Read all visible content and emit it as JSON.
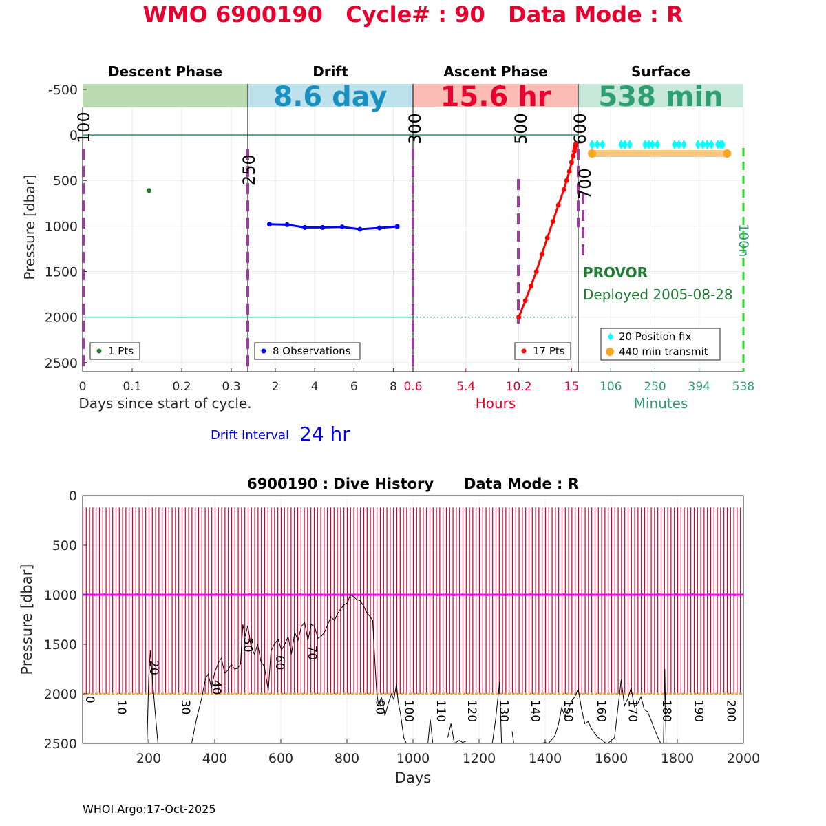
{
  "title": "WMO 6900190   Cycle# : 90   Data Mode : R",
  "footer": "WHOI Argo:17-Oct-2025",
  "colors": {
    "title": "#e8002f",
    "descent_band": "#bbdbb0",
    "drift_band": "#bde2ec",
    "ascent_band": "#fcbcb6",
    "surface_band": "#c6e8d8",
    "drift_big": "#1a8fc0",
    "ascent_big": "#e8002f",
    "surface_big": "#2f9e72",
    "descent_pts": "#1e7d32",
    "drift_pts": "#0000ff",
    "ascent_pts": "#ff0000",
    "position_fix": "#00ffff",
    "transmit": "#f5a623",
    "phase_marker": "#9b3d9b",
    "ref_line": "#2e9b7d",
    "end_marker": "#22dd22",
    "history_bars": "#cc0033",
    "history_drift": "#ff00ff",
    "history_park": "#f5a623"
  },
  "chart_data": [
    {
      "name": "cycle_profile",
      "type": "scatter",
      "ylabel": "Pressure [dbar]",
      "ylim": [
        2600,
        -560
      ],
      "yticks": [
        -500,
        0,
        500,
        1000,
        1500,
        2000,
        2500
      ],
      "reference_depths": [
        0,
        2000
      ],
      "panels": [
        {
          "key": "descent",
          "header": "Descent Phase",
          "band_value": "",
          "xlabel": "Days since start of cycle.",
          "xlim": [
            0,
            0.3333
          ],
          "xticks": [
            0,
            0.1,
            0.2,
            0.3
          ],
          "legend": "1 Pts",
          "points": [
            {
              "x": 0.134,
              "y": 610
            }
          ],
          "markers": [
            {
              "label": "100"
            },
            {
              "label": "250"
            }
          ]
        },
        {
          "key": "drift",
          "header": "Drift",
          "band_value": "8.6 day",
          "xlabel": "",
          "xlim": [
            0.6,
            9.0
          ],
          "xticks": [
            2,
            4,
            6,
            8
          ],
          "legend": "8 Observations",
          "points": [
            {
              "x": 1.7,
              "y": 980
            },
            {
              "x": 2.6,
              "y": 985
            },
            {
              "x": 3.5,
              "y": 1015
            },
            {
              "x": 4.4,
              "y": 1015
            },
            {
              "x": 5.4,
              "y": 1010
            },
            {
              "x": 6.3,
              "y": 1035
            },
            {
              "x": 7.3,
              "y": 1020
            },
            {
              "x": 8.2,
              "y": 1005
            }
          ],
          "markers": [
            {
              "label": "300"
            }
          ]
        },
        {
          "key": "ascent",
          "header": "Ascent Phase",
          "band_value": "15.6 hr",
          "xlabel": "Hours",
          "xlim": [
            0.6,
            15.6
          ],
          "xticks": [
            0.6,
            5.4,
            10.2,
            15
          ],
          "legend": "17 Pts",
          "points": [
            {
              "x": 10.2,
              "y": 2000
            },
            {
              "x": 10.8,
              "y": 1820
            },
            {
              "x": 11.3,
              "y": 1660
            },
            {
              "x": 11.8,
              "y": 1500
            },
            {
              "x": 12.3,
              "y": 1310
            },
            {
              "x": 12.8,
              "y": 1130
            },
            {
              "x": 13.3,
              "y": 950
            },
            {
              "x": 13.8,
              "y": 770
            },
            {
              "x": 14.3,
              "y": 600
            },
            {
              "x": 14.55,
              "y": 500
            },
            {
              "x": 14.8,
              "y": 400
            },
            {
              "x": 15.0,
              "y": 300
            },
            {
              "x": 15.15,
              "y": 230
            },
            {
              "x": 15.25,
              "y": 180
            },
            {
              "x": 15.3,
              "y": 150
            },
            {
              "x": 15.35,
              "y": 120
            },
            {
              "x": 15.38,
              "y": 100
            }
          ],
          "markers": [
            {
              "label": "500"
            },
            {
              "label": "600"
            }
          ]
        },
        {
          "key": "surface",
          "header": "Surface",
          "band_value": "538 min",
          "xlabel": "Minutes",
          "xlim": [
            0,
            538
          ],
          "xticks": [
            106,
            250,
            394,
            538
          ],
          "legend": [
            "20 Position fix",
            "440 min transmit"
          ],
          "position_fix_minutes": [
            45,
            62,
            79,
            140,
            152,
            168,
            218,
            230,
            242,
            258,
            314,
            328,
            344,
            390,
            406,
            420,
            434,
            455,
            464,
            470
          ],
          "transmit_minutes": [
            45,
            485
          ],
          "markers": [
            {
              "label": "700"
            },
            {
              "label": "100n"
            }
          ],
          "float_type": "PROVOR",
          "deployed": "Deployed 2005-08-28"
        }
      ],
      "drift_interval_label": "Drift Interval",
      "drift_interval_value": "24 hr"
    },
    {
      "name": "dive_history",
      "type": "bar",
      "title": "6900190 : Dive History      Data Mode : R",
      "xlabel": "Days",
      "ylabel": "Pressure [dbar]",
      "xlim": [
        0,
        2000
      ],
      "ylim": [
        0,
        2500
      ],
      "xticks": [
        200,
        400,
        600,
        800,
        1000,
        1200,
        1400,
        1600,
        1800,
        2000
      ],
      "yticks": [
        0,
        500,
        1000,
        1500,
        2000,
        2500
      ],
      "cycle_interval_days": 10,
      "cycle_count": 200,
      "profile_top_dbar": 120,
      "profile_bottom_dbar": 2000,
      "drift_pressure_dbar": 1000,
      "park_pressure_dbar": 2000,
      "cycle_labels": [
        {
          "cycle": "0",
          "day": 2,
          "depth": 2020
        },
        {
          "cycle": "10",
          "day": 98,
          "depth": 2060
        },
        {
          "cycle": "20",
          "day": 196,
          "depth": 1660
        },
        {
          "cycle": "30",
          "day": 292,
          "depth": 2060
        },
        {
          "cycle": "40",
          "day": 385,
          "depth": 1860
        },
        {
          "cycle": "50",
          "day": 480,
          "depth": 1430
        },
        {
          "cycle": "60",
          "day": 577,
          "depth": 1610
        },
        {
          "cycle": "70",
          "day": 675,
          "depth": 1510
        },
        {
          "cycle": "90",
          "day": 880,
          "depth": 2060
        },
        {
          "cycle": "100",
          "day": 968,
          "depth": 2060
        },
        {
          "cycle": "110",
          "day": 1065,
          "depth": 2060
        },
        {
          "cycle": "120",
          "day": 1158,
          "depth": 2060
        },
        {
          "cycle": "130",
          "day": 1255,
          "depth": 2060
        },
        {
          "cycle": "140",
          "day": 1350,
          "depth": 2060
        },
        {
          "cycle": "150",
          "day": 1450,
          "depth": 2060
        },
        {
          "cycle": "160",
          "day": 1550,
          "depth": 2060
        },
        {
          "cycle": "170",
          "day": 1645,
          "depth": 2060
        },
        {
          "cycle": "180",
          "day": 1748,
          "depth": 2060
        },
        {
          "cycle": "190",
          "day": 1845,
          "depth": 2060
        },
        {
          "cycle": "200",
          "day": 1943,
          "depth": 2060
        }
      ],
      "bottom_trace": [
        [
          195,
          2500
        ],
        [
          200,
          1850
        ],
        [
          205,
          1560
        ],
        [
          210,
          1800
        ],
        [
          220,
          2200
        ],
        [
          228,
          2500
        ],
        [
          330,
          2500
        ],
        [
          345,
          2250
        ],
        [
          360,
          2050
        ],
        [
          372,
          1850
        ],
        [
          380,
          1800
        ],
        [
          390,
          1940
        ],
        [
          400,
          1780
        ],
        [
          412,
          1680
        ],
        [
          420,
          1640
        ],
        [
          430,
          1790
        ],
        [
          440,
          1760
        ],
        [
          450,
          1700
        ],
        [
          460,
          1750
        ],
        [
          470,
          1740
        ],
        [
          478,
          1700
        ],
        [
          485,
          1300
        ],
        [
          492,
          1420
        ],
        [
          500,
          1310
        ],
        [
          510,
          1530
        ],
        [
          520,
          1600
        ],
        [
          530,
          1500
        ],
        [
          540,
          1680
        ],
        [
          550,
          1720
        ],
        [
          562,
          1970
        ],
        [
          570,
          1570
        ],
        [
          580,
          1500
        ],
        [
          592,
          1450
        ],
        [
          602,
          1560
        ],
        [
          612,
          1500
        ],
        [
          622,
          1420
        ],
        [
          632,
          1600
        ],
        [
          642,
          1380
        ],
        [
          652,
          1460
        ],
        [
          662,
          1320
        ],
        [
          672,
          1280
        ],
        [
          682,
          1460
        ],
        [
          692,
          1300
        ],
        [
          702,
          1320
        ],
        [
          712,
          1440
        ],
        [
          722,
          1420
        ],
        [
          732,
          1380
        ],
        [
          742,
          1300
        ],
        [
          752,
          1220
        ],
        [
          762,
          1260
        ],
        [
          772,
          1190
        ],
        [
          782,
          1140
        ],
        [
          792,
          1100
        ],
        [
          802,
          1080
        ],
        [
          810,
          1000
        ],
        [
          820,
          1020
        ],
        [
          830,
          1050
        ],
        [
          840,
          1060
        ],
        [
          850,
          1110
        ],
        [
          860,
          1180
        ],
        [
          870,
          1220
        ],
        [
          878,
          1260
        ],
        [
          885,
          1700
        ],
        [
          890,
          1980
        ],
        [
          895,
          2100
        ],
        [
          905,
          2040
        ],
        [
          915,
          2220
        ],
        [
          925,
          2100
        ],
        [
          935,
          2000
        ],
        [
          942,
          2060
        ],
        [
          950,
          1900
        ],
        [
          955,
          2080
        ],
        [
          962,
          2200
        ],
        [
          972,
          2440
        ],
        [
          980,
          2500
        ],
        [
          1045,
          2500
        ],
        [
          1052,
          2260
        ],
        [
          1060,
          2500
        ],
        [
          1105,
          2440
        ],
        [
          1115,
          2300
        ],
        [
          1125,
          2500
        ],
        [
          1140,
          2470
        ],
        [
          1150,
          2490
        ],
        [
          1160,
          2480
        ],
        [
          1240,
          2500
        ],
        [
          1250,
          2260
        ],
        [
          1262,
          1880
        ],
        [
          1268,
          2500
        ],
        [
          1300,
          2380
        ],
        [
          1305,
          2500
        ],
        [
          1390,
          2500
        ],
        [
          1400,
          2490
        ],
        [
          1410,
          2500
        ],
        [
          1430,
          2420
        ],
        [
          1440,
          2310
        ],
        [
          1450,
          2140
        ],
        [
          1460,
          2230
        ],
        [
          1470,
          2150
        ],
        [
          1480,
          2070
        ],
        [
          1490,
          2030
        ],
        [
          1500,
          1950
        ],
        [
          1510,
          2150
        ],
        [
          1520,
          2300
        ],
        [
          1530,
          2280
        ],
        [
          1540,
          2350
        ],
        [
          1550,
          2400
        ],
        [
          1560,
          2440
        ],
        [
          1570,
          2460
        ],
        [
          1580,
          2490
        ],
        [
          1590,
          2500
        ],
        [
          1610,
          2440
        ],
        [
          1620,
          2150
        ],
        [
          1630,
          1860
        ],
        [
          1640,
          2120
        ],
        [
          1650,
          2050
        ],
        [
          1660,
          1940
        ],
        [
          1670,
          2130
        ],
        [
          1680,
          2100
        ],
        [
          1690,
          2030
        ],
        [
          1700,
          2160
        ],
        [
          1710,
          2180
        ],
        [
          1720,
          2260
        ],
        [
          1730,
          2350
        ],
        [
          1740,
          2430
        ],
        [
          1750,
          2500
        ],
        [
          1758,
          2500
        ],
        [
          1762,
          1750
        ],
        [
          1766,
          2500
        ]
      ]
    }
  ]
}
